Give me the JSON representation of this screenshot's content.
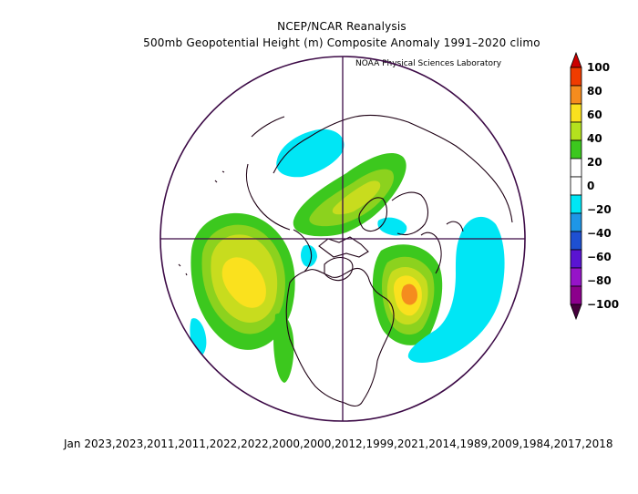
{
  "header": {
    "title": "NCEP/NCAR Reanalysis",
    "subtitle": "500mb Geopotential Height (m) Composite Anomaly 1991–2020 climo",
    "credit": "NOAA Physical Sciences Laboratory"
  },
  "footer": {
    "dates": "Jan 2023,2023,2011,2011,2022,2022,2000,2000,2012,1999,2021,2014,1989,2009,1984,2017,2018"
  },
  "colorbar": {
    "labels": [
      "100",
      "80",
      "60",
      "40",
      "20",
      "0",
      "−20",
      "−40",
      "−60",
      "−80",
      "−100"
    ],
    "colors": [
      "#cc0000",
      "#f03c00",
      "#f58c1e",
      "#fae11e",
      "#b4e11e",
      "#3cc81e",
      "#ffffff",
      "#ffffff",
      "#00e6f5",
      "#1e96e6",
      "#1e50d2",
      "#5a14d2",
      "#9614c8",
      "#8c008c",
      "#46003c"
    ]
  },
  "map": {
    "projection": "north-polar-stereographic",
    "anomaly_fields": [
      {
        "feature": "north-pacific-positive-anomaly",
        "peak": 50
      },
      {
        "feature": "eastern-north-america-atlantic-positive-anomaly",
        "peak": 70
      },
      {
        "feature": "arctic-positive-anomaly",
        "peak": 40
      },
      {
        "feature": "greenland-negative-anomaly",
        "peak": -20
      },
      {
        "feature": "north-atlantic-negative-anomaly",
        "peak": -20
      }
    ],
    "colors": {
      "outline": "#3c0a46",
      "coast": "#1e0014",
      "green": "#3cc81e",
      "lightgreen": "#b4e11e",
      "yellow": "#fae11e",
      "orange": "#f58c1e",
      "cyan": "#00e6f5"
    }
  }
}
